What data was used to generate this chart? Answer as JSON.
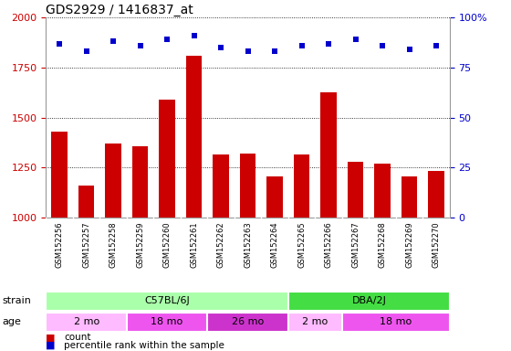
{
  "title": "GDS2929 / 1416837_at",
  "samples": [
    "GSM152256",
    "GSM152257",
    "GSM152258",
    "GSM152259",
    "GSM152260",
    "GSM152261",
    "GSM152262",
    "GSM152263",
    "GSM152264",
    "GSM152265",
    "GSM152266",
    "GSM152267",
    "GSM152268",
    "GSM152269",
    "GSM152270"
  ],
  "counts": [
    1430,
    1160,
    1370,
    1355,
    1590,
    1810,
    1315,
    1320,
    1205,
    1315,
    1625,
    1280,
    1270,
    1205,
    1235
  ],
  "percentile_ranks": [
    87,
    83,
    88,
    86,
    89,
    91,
    85,
    83,
    83,
    86,
    87,
    89,
    86,
    84,
    86
  ],
  "ylim_left": [
    1000,
    2000
  ],
  "ylim_right": [
    0,
    100
  ],
  "yticks_left": [
    1000,
    1250,
    1500,
    1750,
    2000
  ],
  "yticks_right": [
    0,
    25,
    50,
    75,
    100
  ],
  "bar_color": "#cc0000",
  "dot_color": "#0000cc",
  "strain_groups": [
    {
      "label": "C57BL/6J",
      "start": 0,
      "end": 9,
      "color": "#aaffaa"
    },
    {
      "label": "DBA/2J",
      "start": 9,
      "end": 15,
      "color": "#44dd44"
    }
  ],
  "age_groups": [
    {
      "label": "2 mo",
      "start": 0,
      "end": 3,
      "color": "#ffbbff"
    },
    {
      "label": "18 mo",
      "start": 3,
      "end": 6,
      "color": "#ee55ee"
    },
    {
      "label": "26 mo",
      "start": 6,
      "end": 9,
      "color": "#cc33cc"
    },
    {
      "label": "2 mo",
      "start": 9,
      "end": 11,
      "color": "#ffbbff"
    },
    {
      "label": "18 mo",
      "start": 11,
      "end": 15,
      "color": "#ee55ee"
    }
  ],
  "label_bg_color": "#cccccc",
  "label_border_color": "#ffffff",
  "bg_color": "#ffffff",
  "title_color": "#000000",
  "left_tick_color": "#cc0000",
  "right_tick_color": "#0000cc",
  "legend_items": [
    {
      "label": "count",
      "color": "#cc0000"
    },
    {
      "label": "percentile rank within the sample",
      "color": "#0000cc"
    }
  ]
}
